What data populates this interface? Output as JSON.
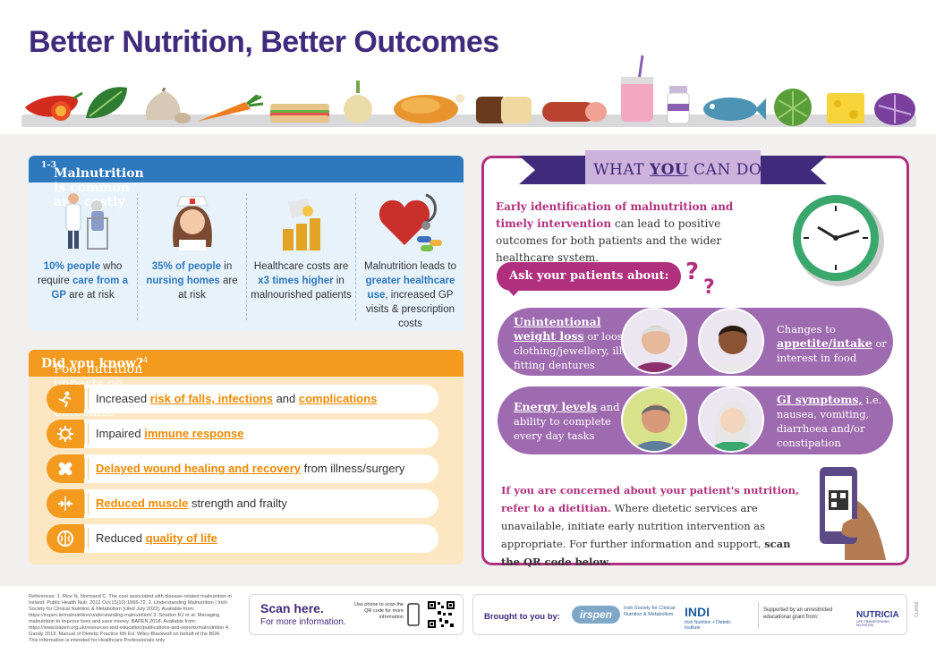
{
  "title": "Better Nutrition, Better Outcomes",
  "food_icons": [
    "chili-pepper",
    "spinach",
    "garlic",
    "carrot",
    "sandwich",
    "onion",
    "roast-chicken",
    "bread",
    "sausage",
    "smoothie",
    "supplement-bottle",
    "fish",
    "cabbage",
    "cheese",
    "red-cabbage"
  ],
  "malnutrition": {
    "heading": "Malnutrition is common and costly",
    "heading_sup": "1–3",
    "stats": [
      {
        "icon": "doctor-patient-icon",
        "bold": "10% people",
        "rest1": " who require ",
        "bold2": "care from a GP",
        "rest2": " are at risk"
      },
      {
        "icon": "nurse-icon",
        "bold": "35% of people",
        "rest1": " in ",
        "bold2": "nursing homes",
        "rest2": " are at risk"
      },
      {
        "icon": "coins-icon",
        "pre": "Healthcare costs are ",
        "bold": "x3 times higher",
        "rest1": " in malnourished patients"
      },
      {
        "icon": "heart-stethoscope-icon",
        "pre": "Malnutrition leads to ",
        "bold": "greater healthcare use",
        "rest1": ", increased GP visits & prescription costs"
      }
    ]
  },
  "did_you_know": {
    "heading_bold": "Did you know?",
    "heading_rest": " Poor nutrition impacts on patient outcomes",
    "heading_sup": "4",
    "items": [
      {
        "icon": "fall-icon",
        "parts": [
          [
            "Increased ",
            false
          ],
          [
            "risk of falls, infections",
            true
          ],
          [
            " and ",
            false
          ],
          [
            "complications",
            true
          ]
        ]
      },
      {
        "icon": "virus-icon",
        "parts": [
          [
            "Impaired ",
            false
          ],
          [
            "immune response",
            true
          ]
        ]
      },
      {
        "icon": "bandage-icon",
        "parts": [
          [
            "Delayed wound healing and recovery",
            true
          ],
          [
            " from illness/surgery",
            false
          ]
        ]
      },
      {
        "icon": "muscle-icon",
        "parts": [
          [
            "Reduced muscle",
            true
          ],
          [
            " strength and frailty",
            false
          ]
        ]
      },
      {
        "icon": "brain-icon",
        "parts": [
          [
            "Reduced ",
            false
          ],
          [
            "quality of life",
            true
          ]
        ]
      }
    ]
  },
  "what_you_can_do": {
    "title_pre": "WHAT ",
    "title_em": "YOU",
    "title_post": " CAN DO?",
    "intro_bold": "Early identification of malnutrition and timely intervention",
    "intro_rest": " can lead to positive outcomes for both patients and the wider healthcare system.",
    "ask": "Ask your patients about:",
    "symptoms": [
      {
        "heading": "Unintentional weight loss",
        "rest": " or loose clothing/jewellery, ill-fitting dentures"
      },
      {
        "pre": "Changes to ",
        "heading": "appetite/intake",
        "rest": " or interest in food"
      },
      {
        "heading": "Energy levels",
        "rest": " and ability to complete every day tasks"
      },
      {
        "heading": "GI symptoms,",
        "rest": " i.e. nausea, vomiting, diarrhoea and/or constipation"
      }
    ],
    "concern_bold": "If you are concerned about your patient's nutrition, refer to a dietitian.",
    "concern_rest": " Where dietetic services are unavailable, initiate early nutrition intervention as appropriate. For further information and support, ",
    "concern_bold2": "scan the QR code below."
  },
  "footer": {
    "references": "References: 1. Rice N, Normand C. The cost associated with disease-related malnutrition in Ireland. Public Health Nutr. 2012 Oct;15(10):1966-72. 2. Understanding Malnutrition | Irish Society for Clinical Nutrition & Metabolism [cited July 2022]. Available from: https://irspen.ie/malnutrition/understanding-malnutrition/ 3. Stratton RJ et al. Managing malnutrition to improve lives and save money. BAPEN 2018. Available from: https://www.bapen.org.uk/resources-and-education/publications-and-reports/malnutrition 4. Gandy 2019. Manual of Dietetic Practice 6th Ed. Wiley-Blackwell on behalf of the BDA.",
    "hcp_note": "This information is intended for Healthcare Professionals only.",
    "scan_title": "Scan here.",
    "scan_sub": "For more information.",
    "scan_note": "Use phone to scan the QR code for more information",
    "brought_by": "Brought to you by:",
    "irspen": "irspen",
    "irspen_sub": "Irish Society for Clinical Nutrition & Metabolism",
    "indi": "INDI",
    "indi_sub": "Irish Nutrition + Dietetic Institute",
    "support": "Supported by an unrestricted educational grant from:",
    "nutricia": "NUTRICIA",
    "nutricia_sub": "LIFE-TRANSFORMING NUTRITION",
    "code": "CL2052"
  },
  "colors": {
    "purple": "#3f2a7c",
    "magenta": "#b0307e",
    "blue": "#2e78be",
    "orange": "#f49b1f",
    "lilac": "#9f6bb0"
  }
}
